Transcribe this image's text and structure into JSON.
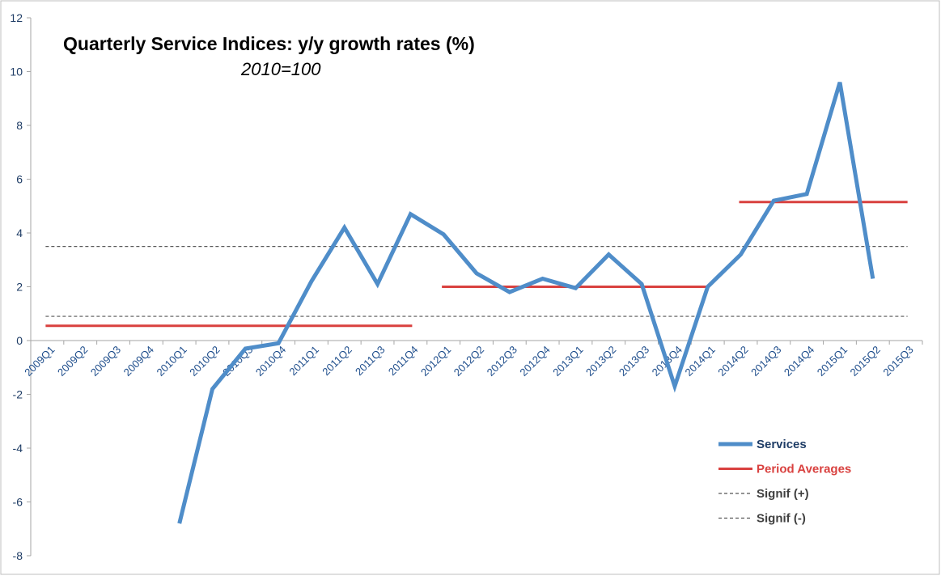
{
  "chart_data": {
    "type": "line",
    "title": "Quarterly Service Indices: y/y growth rates (%)",
    "subtitle": "2010=100",
    "xlabel": "",
    "ylabel": "",
    "ylim": [
      -8,
      12
    ],
    "yticks": [
      -8,
      -6,
      -4,
      -2,
      0,
      2,
      4,
      6,
      8,
      10,
      12
    ],
    "categories": [
      "2009Q1",
      "2009Q2",
      "2009Q3",
      "2009Q4",
      "2010Q1",
      "2010Q2",
      "2010Q3",
      "2010Q4",
      "2011Q1",
      "2011Q2",
      "2011Q3",
      "2011Q4",
      "2012Q1",
      "2012Q2",
      "2012Q3",
      "2012Q4",
      "2013Q1",
      "2013Q2",
      "2013Q3",
      "2013Q4",
      "2014Q1",
      "2014Q2",
      "2014Q3",
      "2014Q4",
      "2015Q1",
      "2015Q2",
      "2015Q3"
    ],
    "series": [
      {
        "name": "Services",
        "color": "#4f8dc9",
        "values": [
          null,
          null,
          null,
          null,
          -6.8,
          -1.8,
          -0.3,
          -0.1,
          2.2,
          4.2,
          2.1,
          4.7,
          3.95,
          2.5,
          1.8,
          2.3,
          1.95,
          3.2,
          2.1,
          -1.7,
          2.0,
          3.2,
          5.2,
          5.45,
          9.6,
          2.3,
          null
        ]
      },
      {
        "name": "Period Averages",
        "color": "#d9413f",
        "segments": [
          {
            "from": "2009Q1",
            "to": "2011Q4",
            "value": 0.55
          },
          {
            "from": "2012Q1",
            "to": "2014Q1",
            "value": 2.0
          },
          {
            "from": "2014Q2",
            "to": "2015Q3",
            "value": 5.15
          }
        ]
      },
      {
        "name": "Signif (+)",
        "color": "#555555",
        "value": 3.5
      },
      {
        "name": "Signif (-)",
        "color": "#555555",
        "value": 0.9
      }
    ],
    "legend": {
      "position": "bottom-right",
      "entries": [
        {
          "label": "Services",
          "color": "#4f8dc9",
          "text_color": "#1f3d66",
          "style": "thick"
        },
        {
          "label": "Period Averages",
          "color": "#d9413f",
          "text_color": "#d9413f",
          "style": "solid"
        },
        {
          "label": "Signif (+)",
          "color": "#555555",
          "text_color": "#404040",
          "style": "dashed"
        },
        {
          "label": "Signif (-)",
          "color": "#555555",
          "text_color": "#404040",
          "style": "dashed"
        }
      ]
    }
  }
}
